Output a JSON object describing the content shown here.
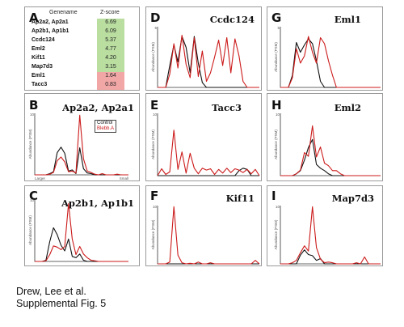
{
  "table": {
    "col_gene": "Genename",
    "col_z": "Z-score",
    "rows": [
      {
        "gene": "Ap2a2, Ap2a1",
        "z": "6.69",
        "color": "#b9dea0"
      },
      {
        "gene": "Ap2b1, Ap1b1",
        "z": "6.09",
        "color": "#b9dea0"
      },
      {
        "gene": "Ccdc124",
        "z": "5.37",
        "color": "#b9dea0"
      },
      {
        "gene": "Eml2",
        "z": "4.77",
        "color": "#b9dea0"
      },
      {
        "gene": "Kif11",
        "z": "4.20",
        "color": "#b9dea0"
      },
      {
        "gene": "Map7d3",
        "z": "3.15",
        "color": "#b9dea0"
      },
      {
        "gene": "Eml1",
        "z": "1.64",
        "color": "#f2a7a7"
      },
      {
        "gene": "Tacc3",
        "z": "0.83",
        "color": "#f2a7a7"
      }
    ]
  },
  "labels": {
    "A": "A",
    "B": "B",
    "C": "C",
    "D": "D",
    "E": "E",
    "F": "F",
    "G": "G",
    "H": "H",
    "I": "I"
  },
  "titles": {
    "B": "Ap2a2, Ap2a1",
    "C": "Ap2b1, Ap1b1",
    "D": "Ccdc124",
    "E": "Tacc3",
    "F": "Kif11",
    "G": "Eml1",
    "H": "Eml2",
    "I": "Map7d3"
  },
  "legend": {
    "control": "Control",
    "treated": "Blebb.A",
    "control_color": "#111111",
    "treated_color": "#cc1a1a"
  },
  "axis": {
    "ylabel": "Abundance (PSM)",
    "ytop": "5",
    "xlarge": "Larger",
    "xsmall": "Small"
  },
  "caption": {
    "line1": "Drew, Lee et al.",
    "line2": "Supplemental Fig. 5"
  },
  "chart_data": [
    {
      "panel": "B",
      "type": "line",
      "title": "Ap2a2, Ap2a1",
      "ylabel": "Abundance (PSM)",
      "xlabel": "",
      "x_tick_labels": [
        "Larger",
        "Small"
      ],
      "ylim": [
        0,
        10
      ],
      "x": [
        0,
        2,
        4,
        6,
        8,
        10,
        12,
        14,
        16,
        18,
        20,
        22,
        24,
        26,
        28,
        30,
        32,
        34,
        36,
        38,
        40,
        42,
        44,
        46,
        48,
        50
      ],
      "series": [
        {
          "name": "Control",
          "values": [
            0,
            0,
            0,
            0,
            0.2,
            0.5,
            3.6,
            4.5,
            3.5,
            0.6,
            0.8,
            0.2,
            4.4,
            1.0,
            0.3,
            0.2,
            0,
            0,
            0,
            0,
            0,
            0,
            0,
            0,
            0,
            0
          ]
        },
        {
          "name": "Blebb.A",
          "values": [
            0,
            0,
            0,
            0,
            0.1,
            0.4,
            2.3,
            2.9,
            2.1,
            0.5,
            0.6,
            0.3,
            9.7,
            2.6,
            0.6,
            0.4,
            0.1,
            0,
            0.2,
            0,
            0,
            0,
            0.1,
            0,
            0,
            0
          ]
        }
      ]
    },
    {
      "panel": "C",
      "type": "line",
      "title": "Ap2b1, Ap1b1",
      "ylabel": "Abundance (PSM)",
      "xlabel": "",
      "x": [
        0,
        2,
        4,
        6,
        8,
        10,
        12,
        14,
        16,
        18,
        20,
        22,
        24,
        26,
        28,
        30,
        32,
        34,
        36,
        38,
        40,
        42,
        44,
        46,
        48,
        50
      ],
      "series": [
        {
          "name": "Control",
          "values": [
            0,
            0,
            0,
            0.2,
            3.2,
            5.4,
            4.3,
            2.6,
            1.7,
            3.6,
            0.8,
            0.6,
            1.2,
            0.2,
            0,
            0,
            0,
            0,
            0,
            0,
            0,
            0,
            0,
            0,
            0,
            0
          ]
        },
        {
          "name": "Blebb.A",
          "values": [
            0,
            0,
            0,
            0.1,
            1.1,
            2.5,
            2.3,
            1.9,
            2.4,
            9.3,
            3.6,
            1.1,
            2.4,
            1.2,
            0.6,
            0.2,
            0.1,
            0,
            0,
            0,
            0,
            0,
            0,
            0,
            0,
            0
          ]
        }
      ]
    },
    {
      "panel": "D",
      "type": "line",
      "title": "Ccdc124",
      "ylabel": "Abundance (PSM)",
      "ylim": [
        0,
        5
      ],
      "xlabel": "",
      "x": [
        0,
        2,
        4,
        6,
        8,
        10,
        12,
        14,
        16,
        18,
        20,
        22,
        24,
        26,
        28,
        30,
        32,
        34,
        36,
        38,
        40,
        42,
        44,
        46,
        48,
        50
      ],
      "series": [
        {
          "name": "Control",
          "values": [
            0,
            0,
            0,
            1.8,
            3.5,
            2.1,
            4.2,
            3.3,
            1.2,
            4.2,
            2.0,
            0.4,
            0,
            0,
            0,
            0,
            0,
            0,
            0,
            0,
            0,
            0,
            0,
            0,
            0,
            0
          ]
        },
        {
          "name": "Blebb.A",
          "values": [
            0,
            0,
            0,
            1.1,
            3.6,
            1.6,
            4.3,
            1.9,
            0.8,
            4.1,
            0.9,
            3.0,
            0.5,
            1.2,
            2.5,
            3.9,
            1.8,
            4.1,
            1.2,
            4.0,
            2.6,
            0.5,
            0,
            0,
            0,
            0
          ]
        }
      ]
    },
    {
      "panel": "E",
      "type": "line",
      "title": "Tacc3",
      "ylabel": "Abundance (PSM)",
      "xlabel": "",
      "x": [
        0,
        2,
        4,
        6,
        8,
        10,
        12,
        14,
        16,
        18,
        20,
        22,
        24,
        26,
        28,
        30,
        32,
        34,
        36,
        38,
        40,
        42,
        44,
        46,
        48,
        50
      ],
      "series": [
        {
          "name": "Control",
          "values": [
            0,
            0,
            0,
            0,
            0,
            0,
            0,
            0,
            0,
            0,
            0,
            0,
            0,
            0,
            0,
            0,
            0,
            0,
            0,
            0,
            0.8,
            1.2,
            1.0,
            0,
            0,
            0
          ]
        },
        {
          "name": "Blebb.A",
          "values": [
            0,
            1.1,
            0.2,
            0.6,
            7.3,
            1.0,
            3.8,
            0.4,
            3.6,
            1.2,
            0.3,
            1.2,
            0.9,
            1.1,
            0.2,
            1.0,
            0.4,
            1.2,
            0.5,
            1.1,
            0.9,
            0.5,
            1.0,
            0.3,
            1.0,
            0
          ]
        }
      ]
    },
    {
      "panel": "F",
      "type": "line",
      "title": "Kif11",
      "ylabel": "Abundance (PSM)",
      "xlabel": "",
      "x": [
        0,
        2,
        4,
        6,
        8,
        10,
        12,
        14,
        16,
        18,
        20,
        22,
        24,
        26,
        28,
        30,
        32,
        34,
        36,
        38,
        40,
        42,
        44,
        46,
        48,
        50
      ],
      "series": [
        {
          "name": "Control",
          "values": [
            0,
            0,
            0,
            0,
            0,
            0,
            0,
            0,
            0,
            0,
            0,
            0,
            0,
            0,
            0,
            0,
            0,
            0,
            0,
            0,
            0,
            0,
            0,
            0,
            0,
            0
          ]
        },
        {
          "name": "Blebb.A",
          "values": [
            0,
            0,
            0,
            0.3,
            9.8,
            1.5,
            0.2,
            0,
            0.1,
            0,
            0.3,
            0,
            0,
            0.2,
            0,
            0,
            0,
            0,
            0,
            0,
            0,
            0,
            0,
            0,
            0.6,
            0
          ]
        }
      ]
    },
    {
      "panel": "G",
      "type": "line",
      "title": "Eml1",
      "ylabel": "Abundance (PSM)",
      "ylim": [
        0,
        5
      ],
      "xlabel": "",
      "x": [
        0,
        2,
        4,
        6,
        8,
        10,
        12,
        14,
        16,
        18,
        20,
        22,
        24,
        26,
        28,
        30,
        32,
        34,
        36,
        38,
        40,
        42,
        44,
        46,
        48,
        50
      ],
      "series": [
        {
          "name": "Control",
          "values": [
            0,
            0,
            0,
            1.0,
            3.7,
            2.9,
            3.5,
            4.0,
            3.6,
            2.2,
            0.5,
            0,
            0,
            0,
            0,
            0,
            0,
            0,
            0,
            0,
            0,
            0,
            0,
            0,
            0,
            0
          ]
        },
        {
          "name": "Blebb.A",
          "values": [
            0,
            0,
            0,
            0.8,
            3.2,
            2.0,
            2.6,
            4.2,
            2.9,
            2.0,
            4.1,
            3.6,
            2.2,
            1.0,
            0,
            0,
            0,
            0,
            0,
            0,
            0,
            0,
            0,
            0,
            0,
            0
          ]
        }
      ]
    },
    {
      "panel": "H",
      "type": "line",
      "title": "Eml2",
      "ylabel": "Abundance (PSM)",
      "xlabel": "",
      "x": [
        0,
        2,
        4,
        6,
        8,
        10,
        12,
        14,
        16,
        18,
        20,
        22,
        24,
        26,
        28,
        30,
        32,
        34,
        36,
        38,
        40,
        42,
        44,
        46,
        48,
        50
      ],
      "series": [
        {
          "name": "Control",
          "values": [
            0,
            0,
            0,
            0,
            0.3,
            0.8,
            2.5,
            4.5,
            5.8,
            1.8,
            1.2,
            0.8,
            0.3,
            0,
            0,
            0,
            0,
            0,
            0,
            0,
            0,
            0,
            0,
            0,
            0,
            0
          ]
        },
        {
          "name": "Blebb.A",
          "values": [
            0,
            0,
            0,
            0,
            0.3,
            0.9,
            3.7,
            3.1,
            8.0,
            3.0,
            4.6,
            2.0,
            1.6,
            0.8,
            0.8,
            0.3,
            0,
            0,
            0,
            0,
            0,
            0,
            0,
            0,
            0,
            0
          ]
        }
      ]
    },
    {
      "panel": "I",
      "type": "line",
      "title": "Map7d3",
      "ylabel": "Abundance (PSM)",
      "xlabel": "",
      "x": [
        0,
        2,
        4,
        6,
        8,
        10,
        12,
        14,
        16,
        18,
        20,
        22,
        24,
        26,
        28,
        30,
        32,
        34,
        36,
        38,
        40,
        42,
        44,
        46,
        48,
        50
      ],
      "series": [
        {
          "name": "Control",
          "values": [
            0,
            0,
            0,
            0,
            0,
            1.5,
            2.4,
            1.6,
            1.4,
            0.6,
            0.9,
            0,
            0,
            0,
            0,
            0,
            0,
            0,
            0,
            0,
            0,
            0,
            0,
            0,
            0,
            0
          ]
        },
        {
          "name": "Blebb.A",
          "values": [
            0,
            0,
            0,
            0.2,
            0.6,
            1.9,
            3.1,
            2.2,
            9.8,
            2.8,
            0.8,
            0.2,
            0.3,
            0.2,
            0,
            0,
            0,
            0,
            0,
            0.2,
            0,
            1.2,
            0,
            0,
            0,
            0
          ]
        }
      ]
    }
  ]
}
